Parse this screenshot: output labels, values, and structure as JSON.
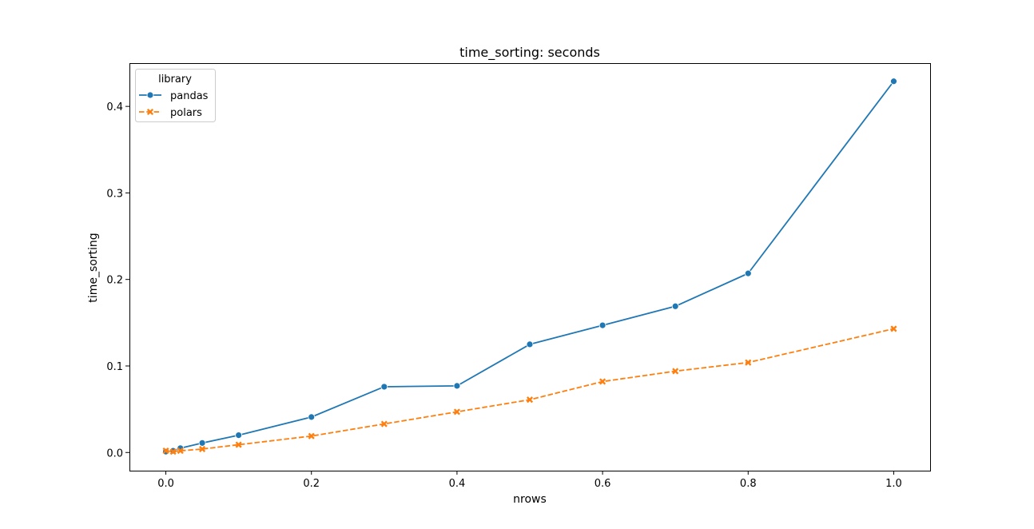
{
  "chart_data": {
    "type": "line",
    "title": "time_sorting: seconds",
    "xlabel": "nrows",
    "ylabel": "time_sorting",
    "xlim": [
      -0.05,
      1.05
    ],
    "ylim": [
      -0.021,
      0.45
    ],
    "xticks": [
      "0.0",
      "0.2",
      "0.4",
      "0.6",
      "0.8",
      "1.0"
    ],
    "yticks": [
      "0.0",
      "0.1",
      "0.2",
      "0.3",
      "0.4"
    ],
    "grid": false,
    "legend": {
      "title": "library",
      "position": "top-left"
    },
    "series": [
      {
        "name": "pandas",
        "color": "#1f77b4",
        "marker": "circle",
        "style": "solid",
        "x": [
          0.0,
          0.01,
          0.02,
          0.05,
          0.1,
          0.2,
          0.3,
          0.4,
          0.5,
          0.6,
          0.7,
          0.8,
          1.0
        ],
        "y": [
          0.001,
          0.002,
          0.005,
          0.011,
          0.02,
          0.041,
          0.076,
          0.077,
          0.125,
          0.147,
          0.169,
          0.207,
          0.429
        ]
      },
      {
        "name": "polars",
        "color": "#ff7f0e",
        "marker": "x",
        "style": "dashed",
        "x": [
          0.0,
          0.01,
          0.02,
          0.05,
          0.1,
          0.2,
          0.3,
          0.4,
          0.5,
          0.6,
          0.7,
          0.8,
          1.0
        ],
        "y": [
          0.002,
          0.001,
          0.002,
          0.004,
          0.009,
          0.019,
          0.033,
          0.047,
          0.061,
          0.082,
          0.094,
          0.104,
          0.143
        ]
      }
    ]
  }
}
